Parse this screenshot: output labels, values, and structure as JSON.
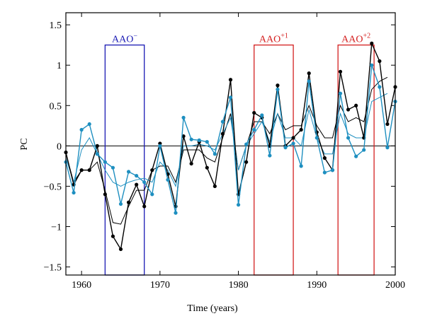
{
  "chart_data": {
    "type": "line",
    "xlabel": "Time (years)",
    "ylabel": "PC",
    "x": [
      1958,
      1959,
      1960,
      1961,
      1962,
      1963,
      1964,
      1965,
      1966,
      1967,
      1968,
      1969,
      1970,
      1971,
      1972,
      1973,
      1974,
      1975,
      1976,
      1977,
      1978,
      1979,
      1980,
      1981,
      1982,
      1983,
      1984,
      1985,
      1986,
      1987,
      1988,
      1989,
      1990,
      1991,
      1992,
      1993,
      1994,
      1995,
      1996,
      1997,
      1998,
      1999,
      2000
    ],
    "series": [
      {
        "color": "#000000",
        "markers": true,
        "width": 1.4,
        "values": [
          -0.08,
          -0.48,
          -0.3,
          -0.3,
          0.0,
          -0.6,
          -1.12,
          -1.28,
          -0.7,
          -0.48,
          -0.75,
          -0.3,
          0.03,
          -0.35,
          -0.75,
          0.12,
          -0.22,
          0.05,
          -0.27,
          -0.5,
          0.15,
          0.82,
          -0.6,
          -0.2,
          0.41,
          0.35,
          0.0,
          0.75,
          0.0,
          0.1,
          0.2,
          0.9,
          0.17,
          -0.15,
          -0.3,
          0.92,
          0.45,
          0.5,
          0.1,
          1.27,
          1.05,
          0.27,
          0.73
        ]
      },
      {
        "color": "#1e8fc0",
        "markers": true,
        "width": 1.4,
        "values": [
          -0.2,
          -0.58,
          0.2,
          0.27,
          -0.1,
          -0.2,
          -0.27,
          -0.72,
          -0.32,
          -0.37,
          -0.45,
          -0.6,
          0.0,
          -0.42,
          -0.83,
          0.35,
          0.08,
          0.07,
          0.05,
          -0.1,
          0.3,
          0.6,
          -0.73,
          0.02,
          0.2,
          0.38,
          -0.12,
          0.7,
          -0.02,
          0.03,
          -0.25,
          0.8,
          0.1,
          -0.33,
          -0.3,
          0.65,
          0.1,
          -0.13,
          -0.05,
          1.0,
          0.73,
          -0.02,
          0.55
        ]
      },
      {
        "color": "#000000",
        "markers": false,
        "width": 1,
        "values": [
          -0.1,
          -0.45,
          -0.3,
          -0.3,
          -0.2,
          -0.55,
          -0.95,
          -0.97,
          -0.75,
          -0.55,
          -0.55,
          -0.3,
          -0.25,
          -0.25,
          -0.45,
          -0.05,
          -0.05,
          -0.05,
          -0.15,
          -0.2,
          0.1,
          0.4,
          -0.3,
          0.0,
          0.3,
          0.3,
          0.15,
          0.4,
          0.2,
          0.25,
          0.25,
          0.5,
          0.25,
          0.1,
          0.1,
          0.5,
          0.3,
          0.35,
          0.3,
          0.7,
          0.8,
          0.85,
          null
        ]
      },
      {
        "color": "#1e8fc0",
        "markers": false,
        "width": 1,
        "values": [
          -0.15,
          -0.45,
          -0.05,
          0.1,
          -0.1,
          -0.3,
          -0.45,
          -0.5,
          -0.45,
          -0.42,
          -0.4,
          -0.45,
          -0.2,
          -0.3,
          -0.5,
          0.0,
          0.0,
          0.02,
          0.0,
          -0.05,
          0.15,
          0.35,
          -0.3,
          0.0,
          0.15,
          0.3,
          0.05,
          0.4,
          0.1,
          0.1,
          0.0,
          0.45,
          0.1,
          -0.1,
          -0.1,
          0.4,
          0.15,
          0.1,
          0.1,
          0.55,
          0.6,
          0.65,
          null
        ]
      }
    ],
    "xlim": [
      1958,
      2000
    ],
    "xticks": [
      1960,
      1970,
      1980,
      1990,
      2000
    ],
    "ylim": [
      -1.6,
      1.65
    ],
    "yticks": [
      {
        "value": -1.5,
        "label": "−1.5"
      },
      {
        "value": -1,
        "label": "−1"
      },
      {
        "value": -0.5,
        "label": "−0.5"
      },
      0,
      0.5,
      1,
      1.5
    ],
    "hline": 0,
    "annotations": [
      {
        "label": "AAO",
        "sup": "−",
        "x0": 1963,
        "x1": 1968,
        "top": 1.25,
        "color": "#1a1ab4"
      },
      {
        "label": "AAO",
        "sup": "+1",
        "x0": 1982,
        "x1": 1987,
        "top": 1.25,
        "color": "#d42020"
      },
      {
        "label": "AAO",
        "sup": "+2",
        "x0": 1992.7,
        "x1": 1997.3,
        "top": 1.25,
        "color": "#d42020"
      }
    ]
  }
}
